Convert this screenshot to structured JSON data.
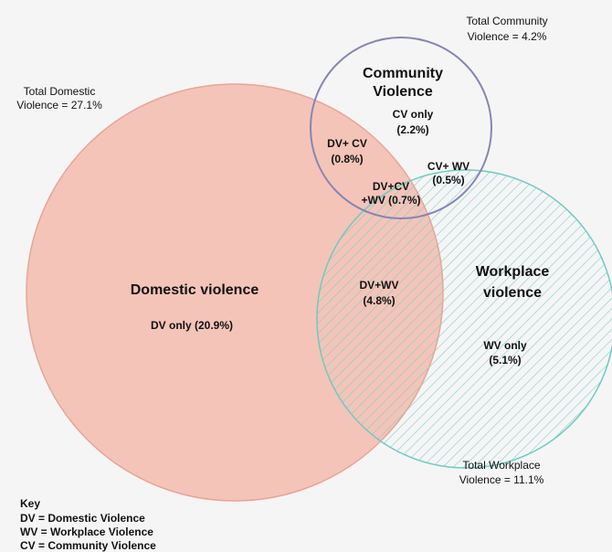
{
  "totals": {
    "community": [
      "Total Community",
      "Violence = 4.2%"
    ],
    "domestic": [
      "Total Domestic",
      "Violence = 27.1%"
    ],
    "workplace": [
      "Total Workplace",
      "Violence = 11.1%"
    ]
  },
  "circles": {
    "community": [
      "Community",
      "Violence"
    ],
    "domestic": [
      "Domestic violence"
    ],
    "workplace": [
      "Workplace",
      "violence"
    ]
  },
  "regions": {
    "cv_only": [
      "CV only",
      "(2.2%)"
    ],
    "dv_cv": [
      "DV+ CV",
      "(0.8%)"
    ],
    "cv_wv": [
      "CV+ WV",
      "(0.5%)"
    ],
    "dv_cv_wv": [
      "DV+CV",
      "+WV (0.7%)"
    ],
    "dv_only": [
      "DV only (20.9%)"
    ],
    "dv_wv": [
      "DV+WV",
      "(4.8%)"
    ],
    "wv_only": [
      "WV only",
      "(5.1%)"
    ]
  },
  "key": [
    "Key",
    "DV = Domestic Violence",
    "WV = Workplace Violence",
    "CV = Community Violence"
  ]
}
